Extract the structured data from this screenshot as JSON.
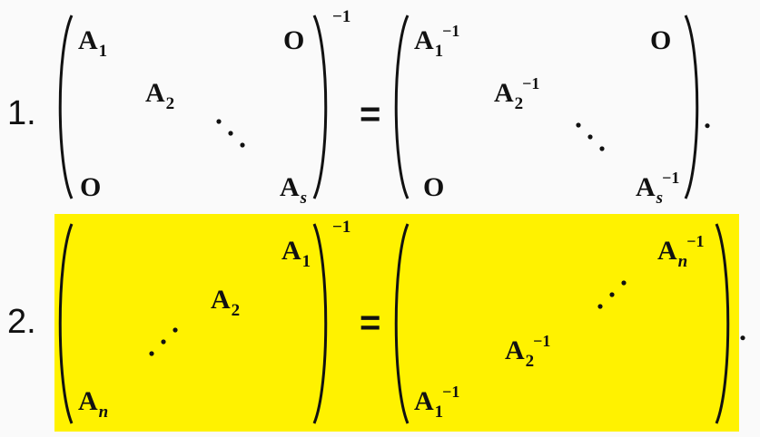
{
  "equation1": {
    "number": "1.",
    "inverse_exponent": "−1",
    "equals": "=",
    "end": ".",
    "left": {
      "zero_top": "O",
      "zero_bottom": "O",
      "a1": {
        "base": "A",
        "sub": "1"
      },
      "a2": {
        "base": "A",
        "sub": "2"
      },
      "as": {
        "base": "A",
        "sub": "s"
      }
    },
    "right": {
      "zero_top": "O",
      "zero_bottom": "O",
      "a1": {
        "base": "A",
        "sub": "1",
        "sup": "−1"
      },
      "a2": {
        "base": "A",
        "sub": "2",
        "sup": "−1"
      },
      "as": {
        "base": "A",
        "sub": "s",
        "sup": "−1"
      }
    }
  },
  "equation2": {
    "number": "2.",
    "inverse_exponent": "−1",
    "equals": "=",
    "end": ".",
    "highlight_color": "#fff200",
    "left": {
      "a1": {
        "base": "A",
        "sub": "1"
      },
      "a2": {
        "base": "A",
        "sub": "2"
      },
      "an": {
        "base": "A",
        "sub": "n"
      }
    },
    "right": {
      "an": {
        "base": "A",
        "sub": "n",
        "sup": "−1"
      },
      "a2": {
        "base": "A",
        "sub": "2",
        "sup": "−1"
      },
      "a1": {
        "base": "A",
        "sub": "1",
        "sup": "−1"
      }
    }
  }
}
